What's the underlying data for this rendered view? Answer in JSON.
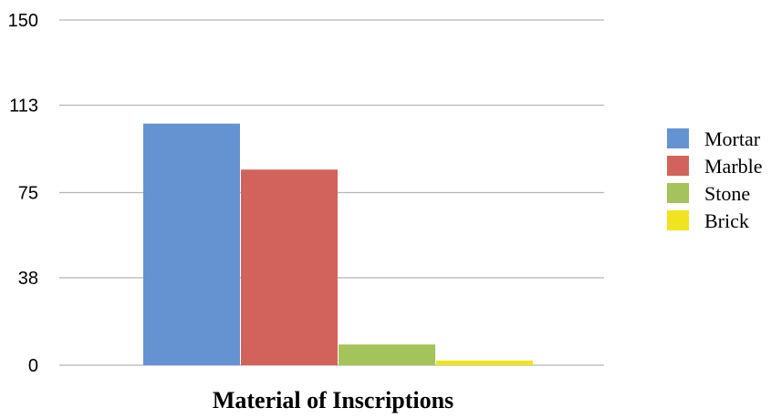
{
  "chart_data": {
    "type": "bar",
    "title": "",
    "xlabel": "Material of Inscriptions",
    "ylabel": "",
    "ylim": [
      0,
      150
    ],
    "yticks": [
      0,
      38,
      75,
      113,
      150
    ],
    "grid": true,
    "legend_position": "right",
    "series": [
      {
        "name": "Mortar",
        "value": 105,
        "color": "#6593d2"
      },
      {
        "name": "Marble",
        "value": 85,
        "color": "#d2635a"
      },
      {
        "name": "Stone",
        "value": 9,
        "color": "#a4c35a"
      },
      {
        "name": "Brick",
        "value": 2,
        "color": "#f0e31f"
      }
    ]
  }
}
